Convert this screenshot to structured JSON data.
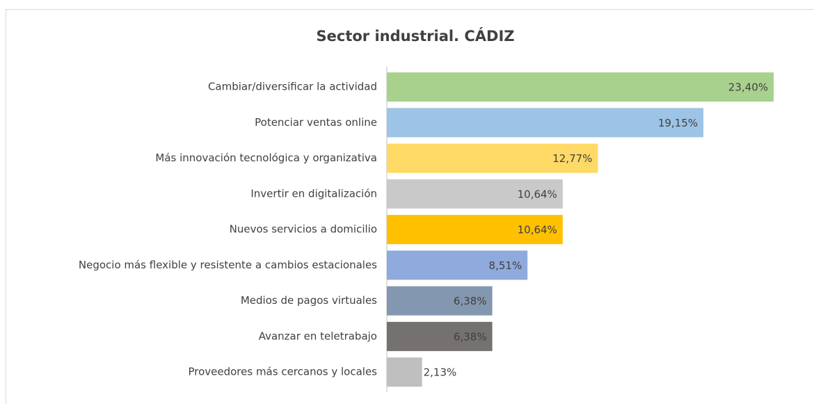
{
  "chart_data": {
    "type": "bar",
    "orientation": "horizontal",
    "title": "Sector industrial. CÁDIZ",
    "categories": [
      "Cambiar/diversificar la actividad",
      "Potenciar ventas online",
      "Más innovación tecnológica y organizativa",
      "Invertir en digitalización",
      "Nuevos servicios a domicilio",
      "Negocio más flexible y resistente a cambios estacionales",
      "Medios de pagos virtuales",
      "Avanzar en teletrabajo",
      "Proveedores más cercanos y locales"
    ],
    "values": [
      23.4,
      19.15,
      12.77,
      10.64,
      10.64,
      8.51,
      6.38,
      6.38,
      2.13
    ],
    "value_labels": [
      "23,40%",
      "19,15%",
      "12,77%",
      "10,64%",
      "10,64%",
      "8,51%",
      "6,38%",
      "6,38%",
      "2,13%"
    ],
    "colors": [
      "#a9d18e",
      "#9dc3e6",
      "#ffd966",
      "#c9c9c9",
      "#ffc000",
      "#8faadc",
      "#8497b0",
      "#767171",
      "#bfbfbf"
    ],
    "xlim": [
      0,
      23.4
    ]
  }
}
